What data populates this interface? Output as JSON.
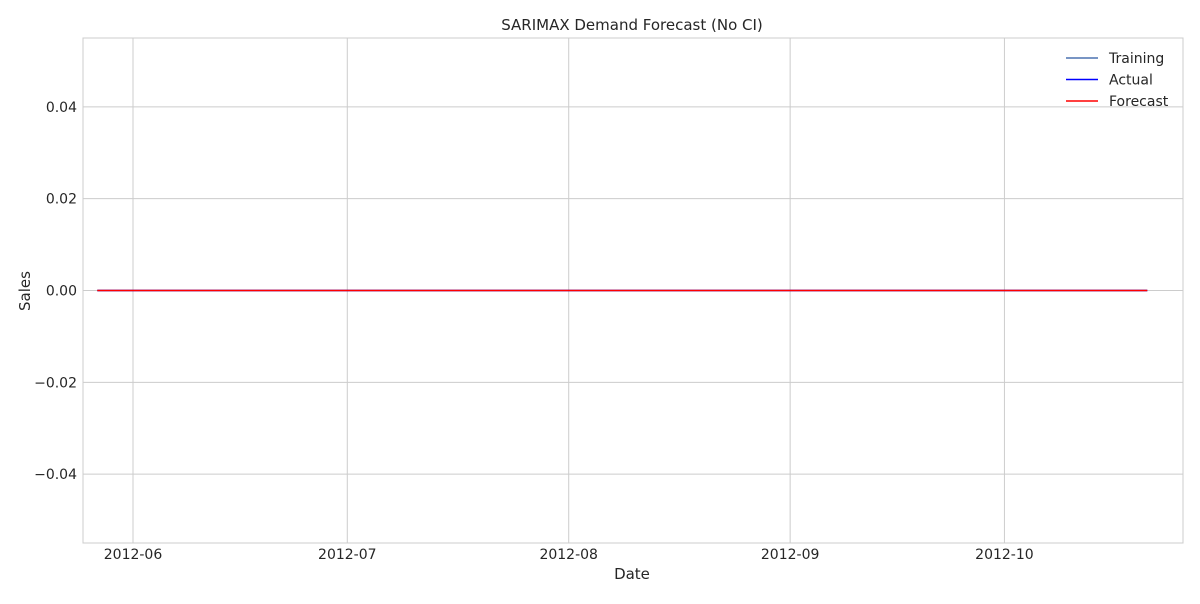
{
  "chart_data": {
    "type": "line",
    "title": "SARIMAX Demand Forecast (No CI)",
    "xlabel": "Date",
    "ylabel": "Sales",
    "x_axis_type": "date",
    "xlim": [
      "2012-05-25",
      "2012-10-26"
    ],
    "ylim": [
      -0.055,
      0.055
    ],
    "x_ticks": [
      "2012-06-01",
      "2012-07-01",
      "2012-08-01",
      "2012-09-01",
      "2012-10-01"
    ],
    "x_tick_labels": [
      "2012-06",
      "2012-07",
      "2012-08",
      "2012-09",
      "2012-10"
    ],
    "y_ticks": [
      -0.04,
      -0.02,
      0.0,
      0.02,
      0.04
    ],
    "y_tick_labels": [
      "−0.04",
      "−0.02",
      "0.00",
      "0.02",
      "0.04"
    ],
    "grid": true,
    "legend_position": "top-right",
    "series": [
      {
        "name": "Training",
        "color": "#4c72b0",
        "points": [
          {
            "x": "2012-05-27",
            "y": 0
          },
          {
            "x": "2012-10-21",
            "y": 0
          }
        ]
      },
      {
        "name": "Actual",
        "color": "#0000ff",
        "points": [
          {
            "x": "2012-05-27",
            "y": 0
          },
          {
            "x": "2012-10-21",
            "y": 0
          }
        ]
      },
      {
        "name": "Forecast",
        "color": "#ff0000",
        "points": [
          {
            "x": "2012-05-27",
            "y": 0
          },
          {
            "x": "2012-10-21",
            "y": 0
          }
        ]
      }
    ]
  }
}
